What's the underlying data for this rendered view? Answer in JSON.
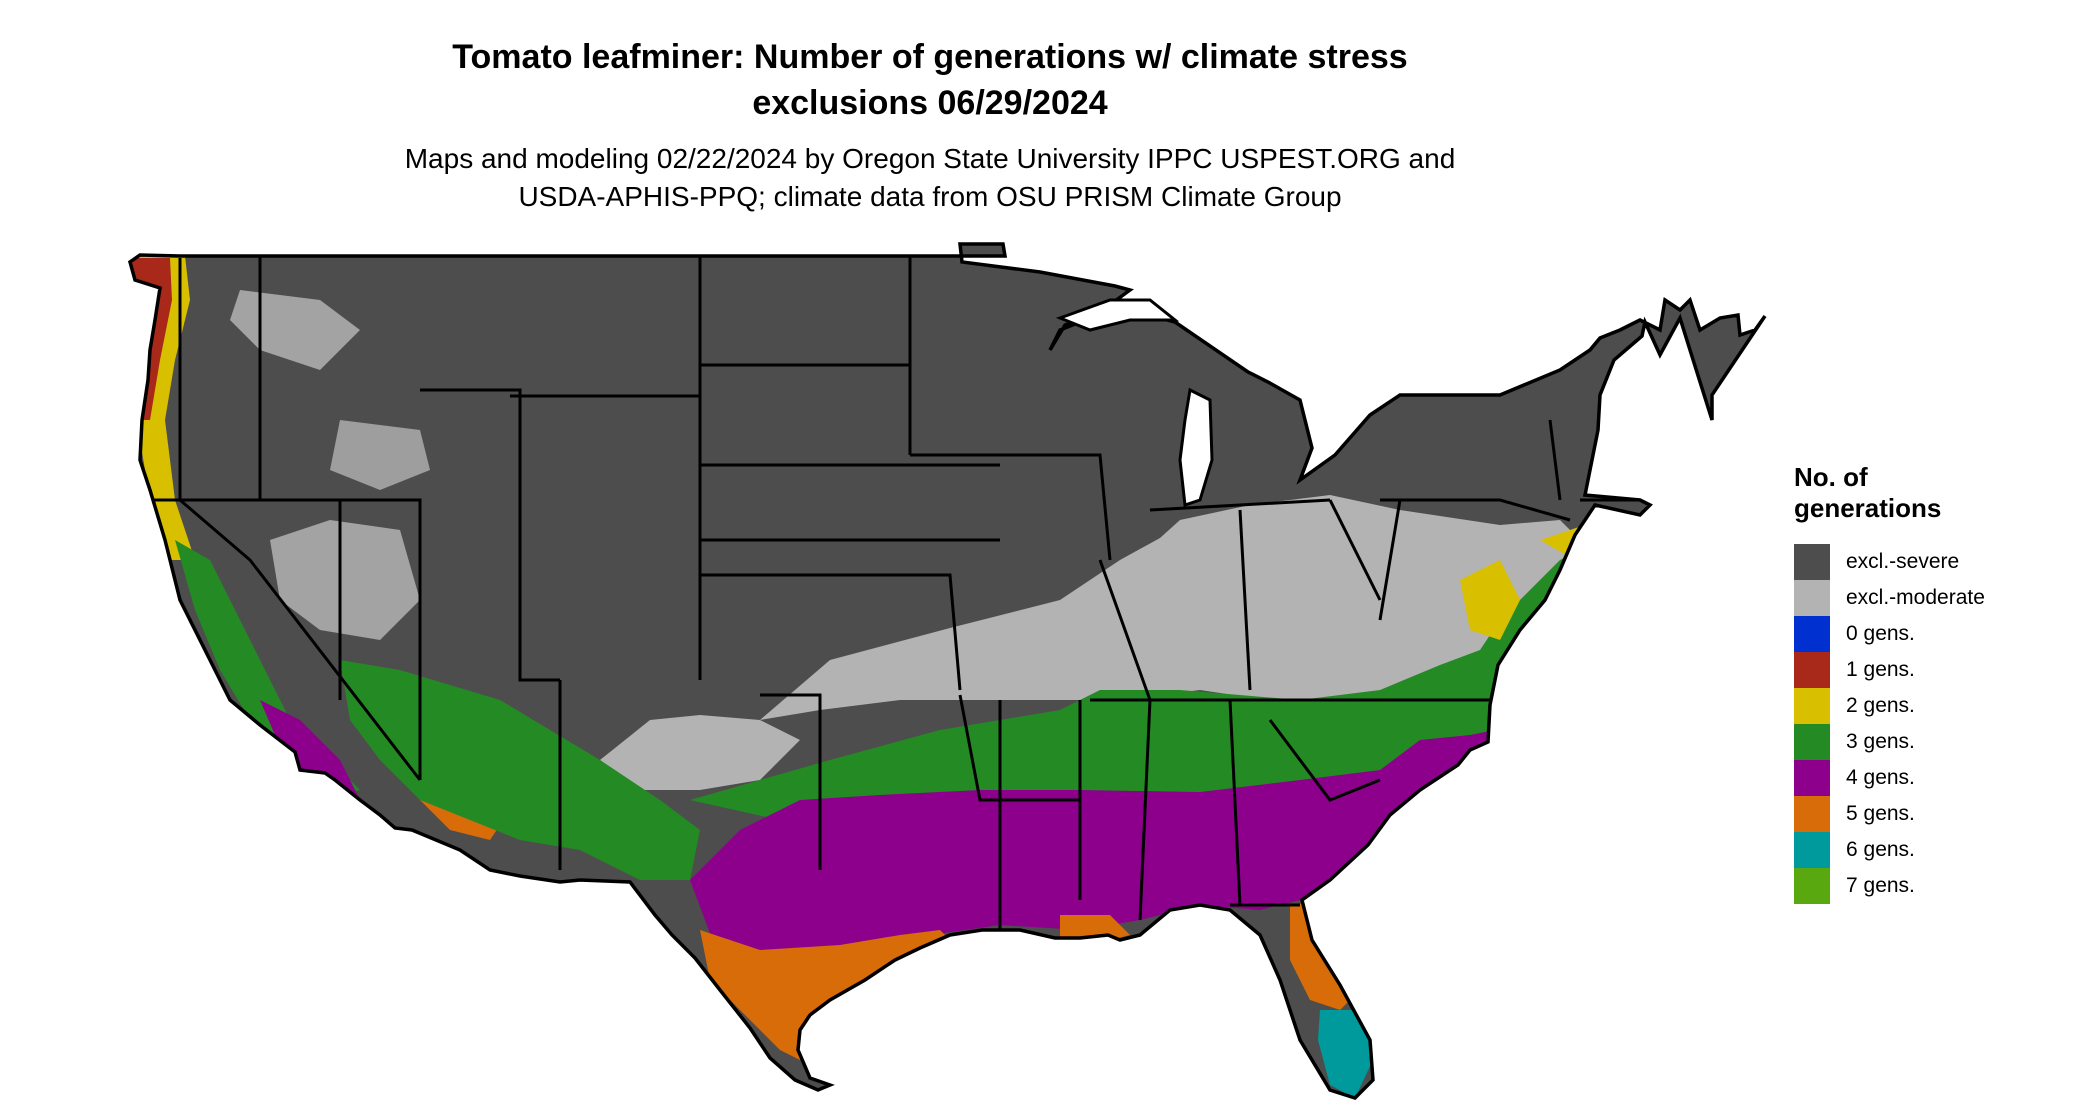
{
  "title_line1": "Tomato leafminer: Number of generations w/ climate stress",
  "title_line2": "exclusions 06/29/2024",
  "subtitle_line1": "Maps and modeling 02/22/2024 by Oregon State University IPPC USPEST.ORG and",
  "subtitle_line2": "USDA-APHIS-PPQ; climate data from OSU PRISM Climate Group",
  "legend": {
    "title_line1": "No. of",
    "title_line2": "generations",
    "items": [
      {
        "label": "excl.-severe",
        "color": "#4d4d4d"
      },
      {
        "label": "excl.-moderate",
        "color": "#b3b3b3"
      },
      {
        "label": "0 gens.",
        "color": "#0030d0"
      },
      {
        "label": "1 gens.",
        "color": "#a8281a"
      },
      {
        "label": "2 gens.",
        "color": "#d8c000"
      },
      {
        "label": "3 gens.",
        "color": "#248a24"
      },
      {
        "label": "4 gens.",
        "color": "#8c008c"
      },
      {
        "label": "5 gens.",
        "color": "#d86c08"
      },
      {
        "label": "6 gens.",
        "color": "#00999c"
      },
      {
        "label": "7 gens.",
        "color": "#5aa80f"
      }
    ]
  }
}
